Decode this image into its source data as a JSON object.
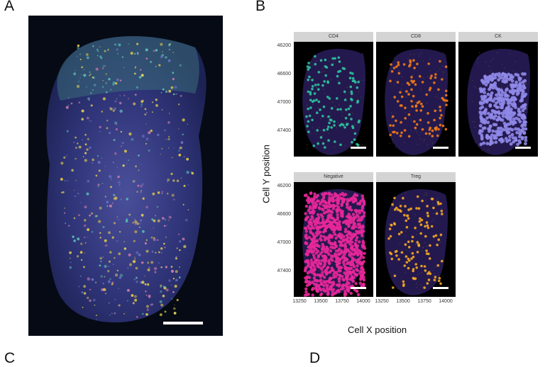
{
  "panels": {
    "a_label": "A",
    "b_label": "B",
    "c_label": "C",
    "d_label": "D"
  },
  "panel_b": {
    "y_title": "Cell Y position",
    "x_title": "Cell X position",
    "y_ticks": [
      "46200",
      "46600",
      "47000",
      "47400"
    ],
    "x_ticks": [
      "13250",
      "13500",
      "13750",
      "14000"
    ],
    "facets": [
      {
        "label": "CD4",
        "color": "#2ec4a0"
      },
      {
        "label": "CD8",
        "color": "#f07a1a"
      },
      {
        "label": "CK",
        "color": "#8f88e8"
      },
      {
        "label": "Negative",
        "color": "#e8279a"
      },
      {
        "label": "Treg",
        "color": "#f5a623"
      }
    ]
  },
  "colors": {
    "tissue_base": "#3a3f86",
    "background": "#000000"
  }
}
